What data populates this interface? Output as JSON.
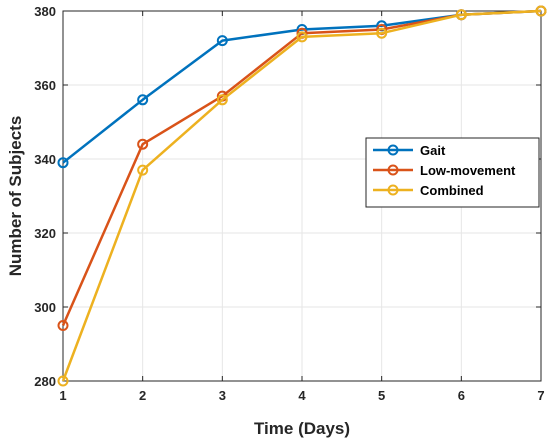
{
  "chart_data": {
    "type": "line",
    "title": "",
    "xlabel": "Time (Days)",
    "ylabel": "Number of Subjects",
    "x": [
      1,
      2,
      3,
      4,
      5,
      6,
      7
    ],
    "xlim": [
      1,
      7
    ],
    "ylim": [
      280,
      380
    ],
    "yticks": [
      280,
      300,
      320,
      340,
      360,
      380
    ],
    "grid": true,
    "legend_position": "right-middle",
    "series": [
      {
        "name": "Gait",
        "color": "#0072BD",
        "values": [
          339,
          356,
          372,
          375,
          376,
          379,
          380
        ]
      },
      {
        "name": "Low-movement",
        "color": "#D95319",
        "values": [
          295,
          344,
          357,
          374,
          375,
          379,
          380
        ]
      },
      {
        "name": "Combined",
        "color": "#EDB120",
        "values": [
          280,
          337,
          356,
          373,
          374,
          379,
          380
        ]
      }
    ]
  }
}
